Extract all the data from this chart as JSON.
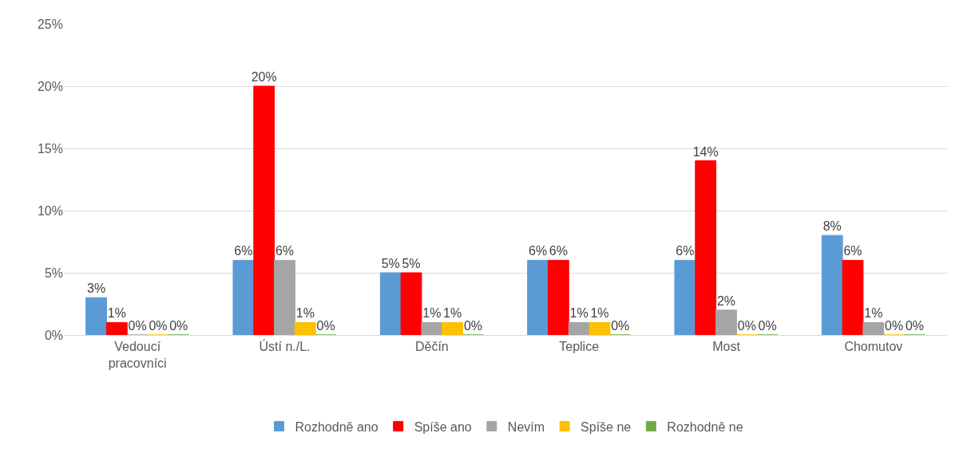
{
  "chart_data": {
    "type": "bar",
    "categories": [
      "Vedoucí pracovníci",
      "Ústí n./L.",
      "Děčín",
      "Teplice",
      "Most",
      "Chomutov"
    ],
    "series": [
      {
        "name": "Rozhodně ano",
        "color": "#5b9bd5",
        "values": [
          3,
          6,
          5,
          6,
          6,
          8
        ],
        "value_labels": [
          "3%",
          "6%",
          "5%",
          "6%",
          "6%",
          "8%"
        ]
      },
      {
        "name": "Spíše ano",
        "color": "#ff0000",
        "values": [
          1,
          20,
          5,
          6,
          14,
          6
        ],
        "value_labels": [
          "1%",
          "20%",
          "5%",
          "6%",
          "14%",
          "6%"
        ]
      },
      {
        "name": "Nevím",
        "color": "#a5a5a5",
        "values": [
          0,
          6,
          1,
          1,
          2,
          1
        ],
        "value_labels": [
          "0%",
          "6%",
          "1%",
          "1%",
          "2%",
          "1%"
        ]
      },
      {
        "name": "Spíše ne",
        "color": "#ffc000",
        "values": [
          0,
          1,
          1,
          1,
          0,
          0
        ],
        "value_labels": [
          "0%",
          "1%",
          "1%",
          "1%",
          "0%",
          "0%"
        ]
      },
      {
        "name": "Rozhodně ne",
        "color": "#70ad47",
        "values": [
          0,
          0,
          0,
          0,
          0,
          0
        ],
        "value_labels": [
          "0%",
          "0%",
          "0%",
          "0%",
          "0%",
          "0%"
        ]
      }
    ],
    "ylim": [
      0,
      25
    ],
    "yticks": [
      {
        "value": 0,
        "label": "0%"
      },
      {
        "value": 5,
        "label": "5%"
      },
      {
        "value": 10,
        "label": "10%"
      },
      {
        "value": 15,
        "label": "15%"
      },
      {
        "value": 20,
        "label": "20%"
      },
      {
        "value": 25,
        "label": "25%"
      }
    ],
    "grid": "y",
    "legend": "bottom"
  }
}
